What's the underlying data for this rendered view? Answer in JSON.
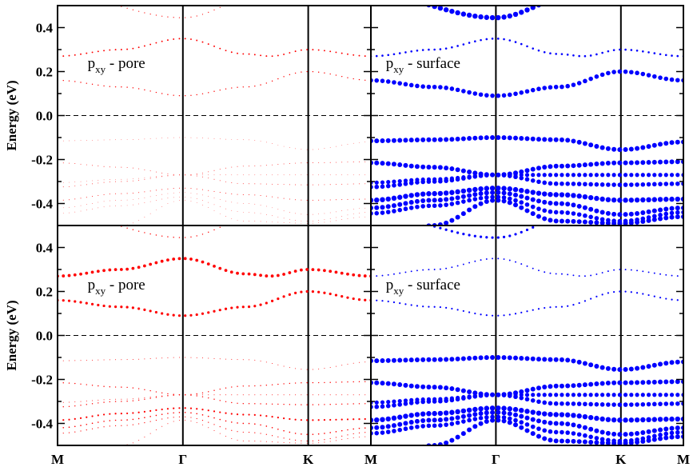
{
  "chart_data": {
    "type": "scatter",
    "description_type": "band-structure fat-band panels",
    "ylabel": "Energy (eV)",
    "ylim": [
      -0.5,
      0.5
    ],
    "y_ticks": [
      "0.4",
      "0.2",
      "0.0",
      "-0.2",
      "-0.4"
    ],
    "y_tick_values": [
      0.4,
      0.2,
      0.0,
      -0.2,
      -0.4
    ],
    "kpoint_labels": [
      "M",
      "Γ",
      "K",
      "M"
    ],
    "kpoint_positions": [
      0,
      1,
      2,
      2.5
    ],
    "fermi_level": 0.0,
    "bands": [
      {
        "nodes": [
          [
            0,
            0.55
          ],
          [
            1,
            0.445
          ],
          [
            1.6,
            0.54
          ]
        ]
      },
      {
        "nodes": [
          [
            0,
            0.27
          ],
          [
            0.5,
            0.3
          ],
          [
            1,
            0.35
          ],
          [
            1.5,
            0.28
          ],
          [
            1.7,
            0.27
          ],
          [
            2,
            0.3
          ],
          [
            2.5,
            0.27
          ]
        ]
      },
      {
        "nodes": [
          [
            0,
            0.16
          ],
          [
            0.5,
            0.13
          ],
          [
            1,
            0.09
          ],
          [
            1.5,
            0.13
          ],
          [
            2,
            0.2
          ],
          [
            2.5,
            0.16
          ]
        ]
      },
      {
        "nodes": [
          [
            0,
            -0.115
          ],
          [
            0.5,
            -0.11
          ],
          [
            1,
            -0.1
          ],
          [
            1.5,
            -0.11
          ],
          [
            2,
            -0.155
          ],
          [
            2.5,
            -0.12
          ]
        ]
      },
      {
        "nodes": [
          [
            0,
            -0.215
          ],
          [
            0.5,
            -0.235
          ],
          [
            1,
            -0.27
          ],
          [
            1.5,
            -0.23
          ],
          [
            2,
            -0.215
          ],
          [
            2.5,
            -0.21
          ]
        ]
      },
      {
        "nodes": [
          [
            0,
            -0.305
          ],
          [
            0.5,
            -0.29
          ],
          [
            1,
            -0.27
          ],
          [
            1.5,
            -0.27
          ],
          [
            2,
            -0.27
          ],
          [
            2.5,
            -0.27
          ]
        ]
      },
      {
        "nodes": [
          [
            0,
            -0.325
          ],
          [
            0.5,
            -0.3
          ],
          [
            1,
            -0.27
          ],
          [
            1.5,
            -0.31
          ],
          [
            2,
            -0.315
          ],
          [
            2.5,
            -0.31
          ]
        ]
      },
      {
        "nodes": [
          [
            0,
            -0.385
          ],
          [
            0.5,
            -0.355
          ],
          [
            1,
            -0.33
          ],
          [
            1.5,
            -0.36
          ],
          [
            2,
            -0.385
          ],
          [
            2.5,
            -0.38
          ]
        ]
      },
      {
        "nodes": [
          [
            0,
            -0.42
          ],
          [
            0.5,
            -0.385
          ],
          [
            1,
            -0.35
          ],
          [
            1.5,
            -0.4
          ],
          [
            2,
            -0.45
          ],
          [
            2.5,
            -0.42
          ]
        ]
      },
      {
        "nodes": [
          [
            0,
            -0.445
          ],
          [
            0.5,
            -0.41
          ],
          [
            1,
            -0.37
          ],
          [
            1.5,
            -0.44
          ],
          [
            2,
            -0.48
          ],
          [
            2.5,
            -0.44
          ]
        ]
      },
      {
        "nodes": [
          [
            0,
            -0.6
          ],
          [
            0.5,
            -0.5
          ],
          [
            1,
            -0.385
          ],
          [
            1.5,
            -0.48
          ],
          [
            2,
            -0.49
          ],
          [
            2.5,
            -0.46
          ]
        ]
      }
    ],
    "panels": [
      {
        "annotation_main": "p",
        "annotation_sub": "xy",
        "annotation_rest": " - pore",
        "color": "#ff0000",
        "weights": [
          0.6,
          0.95,
          0.7,
          0.35,
          0.45,
          0.35,
          0.45,
          0.5,
          0.35,
          0.35,
          0.35
        ]
      },
      {
        "annotation_main": "p",
        "annotation_sub": "xy",
        "annotation_rest": " - surface",
        "color": "#0000ff",
        "weights": [
          3.2,
          1.3,
          2.8,
          3.0,
          3.0,
          2.6,
          2.8,
          3.2,
          3.0,
          2.8,
          3.0
        ]
      },
      {
        "annotation_main": "p",
        "annotation_sub": "xy",
        "annotation_rest": " - pore",
        "color": "#ff0000",
        "weights": [
          0.7,
          1.9,
          1.6,
          0.5,
          0.7,
          0.5,
          0.7,
          1.1,
          0.8,
          0.6,
          0.5
        ]
      },
      {
        "annotation_main": "p",
        "annotation_sub": "xy",
        "annotation_rest": " - surface",
        "color": "#0000ff",
        "weights": [
          1.6,
          0.95,
          1.1,
          3.0,
          3.0,
          2.6,
          2.8,
          3.2,
          3.0,
          2.8,
          3.0
        ]
      }
    ],
    "colors": {
      "pore": "#ff0000",
      "surface": "#0000ff",
      "axes": "#000000",
      "fermi": "#000000"
    }
  }
}
